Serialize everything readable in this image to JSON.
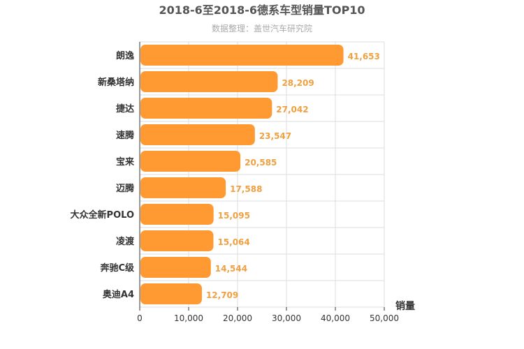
{
  "chart_data": {
    "type": "bar",
    "orientation": "horizontal",
    "title": "2018-6至2018-6德系车型销量TOP10",
    "subtitle": "数据整理：盖世汽车研究院",
    "categories": [
      "朗逸",
      "新桑塔纳",
      "捷达",
      "速腾",
      "宝来",
      "迈腾",
      "大众全新POLO",
      "凌渡",
      "奔驰C级",
      "奥迪A4"
    ],
    "values": [
      41653,
      28209,
      27042,
      23547,
      20585,
      17588,
      15095,
      15064,
      14544,
      12709
    ],
    "value_labels": [
      "41,653",
      "28,209",
      "27,042",
      "23,547",
      "20,585",
      "17,588",
      "15,095",
      "15,064",
      "14,544",
      "12,709"
    ],
    "xlabel": "销量",
    "ylabel": "",
    "xlim": [
      0,
      50000
    ],
    "x_ticks": [
      0,
      10000,
      20000,
      30000,
      40000,
      50000
    ],
    "x_tick_labels": [
      "0",
      "10,000",
      "20,000",
      "30,000",
      "40,000",
      "50,000"
    ],
    "grid": true,
    "bar_color": "#ff9a33",
    "grid_color": "#dddddd"
  }
}
